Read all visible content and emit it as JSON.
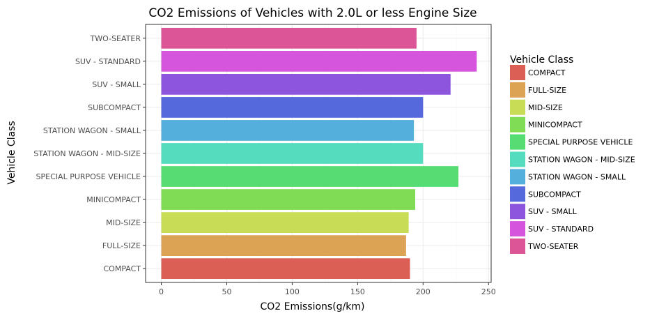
{
  "chart_data": {
    "type": "bar",
    "orientation": "horizontal",
    "title": "CO2 Emissions of Vehicles with 2.0L or less Engine Size",
    "xlabel": "CO2 Emissions(g/km)",
    "ylabel": "Vehicle Class",
    "xlim": [
      -12,
      252
    ],
    "xticks": [
      0,
      50,
      100,
      150,
      200,
      250
    ],
    "grid": true,
    "legend_title": "Vehicle Class",
    "legend_position": "right",
    "categories": [
      "COMPACT",
      "FULL-SIZE",
      "MID-SIZE",
      "MINICOMPACT",
      "SPECIAL PURPOSE VEHICLE",
      "STATION WAGON - MID-SIZE",
      "STATION WAGON - SMALL",
      "SUBCOMPACT",
      "SUV - SMALL",
      "SUV - STANDARD",
      "TWO-SEATER"
    ],
    "values": [
      190,
      187,
      189,
      194,
      227,
      200,
      193,
      200,
      221,
      241,
      195
    ],
    "colors": [
      "#dc5f55",
      "#dca355",
      "#c8dc55",
      "#80dc55",
      "#55dc73",
      "#55dcbf",
      "#55afdc",
      "#5569dc",
      "#8c55dc",
      "#d555dc",
      "#dc5596"
    ]
  }
}
